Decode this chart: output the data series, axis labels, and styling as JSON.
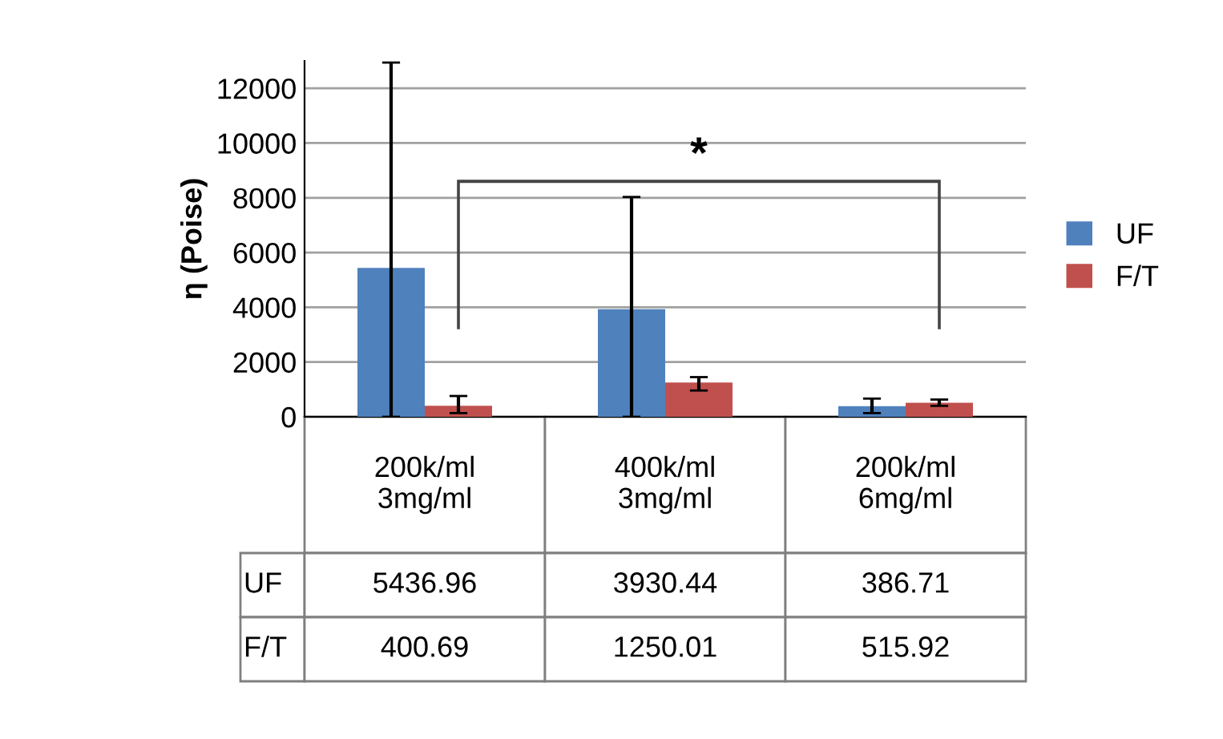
{
  "chart_data": {
    "type": "bar",
    "ylabel": "η (Poise)",
    "categories": [
      "200k/ml\n3mg/ml",
      "400k/ml\n3mg/ml",
      "200k/ml\n6mg/ml"
    ],
    "series": [
      {
        "name": "UF",
        "color": "#4f81bd",
        "values": [
          5436.96,
          3930.44,
          386.71
        ],
        "errors": [
          [
            0,
            12940
          ],
          [
            0,
            8030
          ],
          [
            135,
            665
          ]
        ]
      },
      {
        "name": "F/T",
        "color": "#c0504d",
        "values": [
          400.69,
          1250.01,
          515.92
        ],
        "errors": [
          [
            135,
            760
          ],
          [
            960,
            1450
          ],
          [
            400,
            630
          ]
        ]
      }
    ],
    "ylim": [
      0,
      13000
    ],
    "yticks": [
      0,
      2000,
      4000,
      6000,
      8000,
      10000,
      12000
    ],
    "grid": "y",
    "legend": "right",
    "data_labels": true,
    "annotations": [
      "*"
    ]
  }
}
